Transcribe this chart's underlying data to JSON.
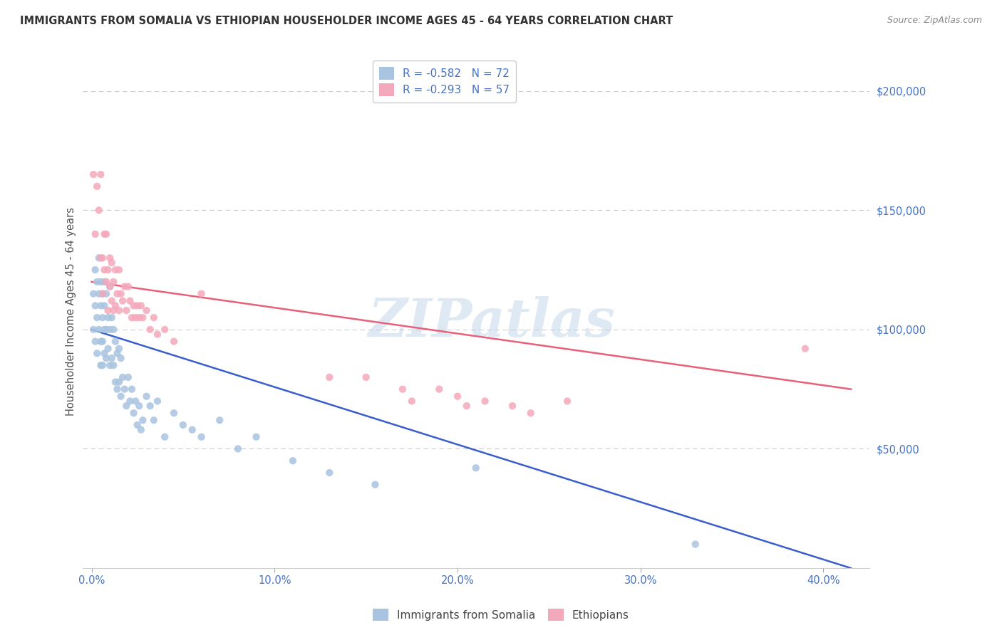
{
  "title": "IMMIGRANTS FROM SOMALIA VS ETHIOPIAN HOUSEHOLDER INCOME AGES 45 - 64 YEARS CORRELATION CHART",
  "source": "Source: ZipAtlas.com",
  "ylabel": "Householder Income Ages 45 - 64 years",
  "ylabel_ticks_labels": [
    "$50,000",
    "$100,000",
    "$150,000",
    "$200,000"
  ],
  "ylabel_ticks_vals": [
    50000,
    100000,
    150000,
    200000
  ],
  "xlabel_ticks_labels": [
    "0.0%",
    "10.0%",
    "20.0%",
    "30.0%",
    "40.0%"
  ],
  "xlabel_ticks_vals": [
    0.0,
    0.1,
    0.2,
    0.3,
    0.4
  ],
  "xlim": [
    -0.005,
    0.425
  ],
  "ylim": [
    0,
    215000
  ],
  "somalia_color": "#a8c4e0",
  "ethiopia_color": "#f4a8bb",
  "somalia_line_color": "#3a5fcd",
  "ethiopia_line_color": "#e8607a",
  "somalia_line_x0": 0.0,
  "somalia_line_y0": 100000,
  "somalia_line_x1": 0.415,
  "somalia_line_y1": 0,
  "ethiopia_line_x0": 0.0,
  "ethiopia_line_y0": 120000,
  "ethiopia_line_x1": 0.415,
  "ethiopia_line_y1": 75000,
  "legend_text_1": "R = -0.582   N = 72",
  "legend_text_2": "R = -0.293   N = 57",
  "legend_label_somalia": "Immigrants from Somalia",
  "legend_label_ethiopia": "Ethiopians",
  "watermark": "ZIPatlas",
  "background_color": "#ffffff",
  "grid_color": "#cccccc",
  "title_color": "#333333",
  "tick_color": "#4472c4",
  "ylabel_color": "#555555",
  "somalia_x": [
    0.001,
    0.001,
    0.002,
    0.002,
    0.002,
    0.003,
    0.003,
    0.003,
    0.004,
    0.004,
    0.004,
    0.005,
    0.005,
    0.005,
    0.005,
    0.006,
    0.006,
    0.006,
    0.006,
    0.007,
    0.007,
    0.007,
    0.007,
    0.008,
    0.008,
    0.008,
    0.009,
    0.009,
    0.01,
    0.01,
    0.01,
    0.011,
    0.011,
    0.012,
    0.012,
    0.013,
    0.013,
    0.014,
    0.014,
    0.015,
    0.015,
    0.016,
    0.016,
    0.017,
    0.018,
    0.019,
    0.02,
    0.021,
    0.022,
    0.023,
    0.024,
    0.025,
    0.026,
    0.027,
    0.028,
    0.03,
    0.032,
    0.034,
    0.036,
    0.04,
    0.045,
    0.05,
    0.055,
    0.06,
    0.07,
    0.08,
    0.09,
    0.11,
    0.13,
    0.155,
    0.21,
    0.33
  ],
  "somalia_y": [
    115000,
    100000,
    125000,
    110000,
    95000,
    120000,
    105000,
    90000,
    130000,
    115000,
    100000,
    120000,
    110000,
    95000,
    85000,
    115000,
    105000,
    95000,
    85000,
    120000,
    110000,
    100000,
    90000,
    115000,
    100000,
    88000,
    105000,
    92000,
    118000,
    100000,
    85000,
    105000,
    88000,
    100000,
    85000,
    95000,
    78000,
    90000,
    75000,
    92000,
    78000,
    88000,
    72000,
    80000,
    75000,
    68000,
    80000,
    70000,
    75000,
    65000,
    70000,
    60000,
    68000,
    58000,
    62000,
    72000,
    68000,
    62000,
    70000,
    55000,
    65000,
    60000,
    58000,
    55000,
    62000,
    50000,
    55000,
    45000,
    40000,
    35000,
    42000,
    10000
  ],
  "ethiopia_x": [
    0.001,
    0.002,
    0.003,
    0.004,
    0.005,
    0.005,
    0.006,
    0.006,
    0.007,
    0.007,
    0.008,
    0.008,
    0.009,
    0.009,
    0.01,
    0.01,
    0.011,
    0.011,
    0.012,
    0.012,
    0.013,
    0.013,
    0.014,
    0.015,
    0.015,
    0.016,
    0.017,
    0.018,
    0.019,
    0.02,
    0.021,
    0.022,
    0.023,
    0.024,
    0.025,
    0.026,
    0.027,
    0.028,
    0.03,
    0.032,
    0.034,
    0.036,
    0.04,
    0.045,
    0.06,
    0.13,
    0.15,
    0.17,
    0.175,
    0.19,
    0.2,
    0.205,
    0.215,
    0.23,
    0.24,
    0.26,
    0.39
  ],
  "ethiopia_y": [
    165000,
    140000,
    160000,
    150000,
    165000,
    130000,
    130000,
    115000,
    140000,
    125000,
    140000,
    120000,
    125000,
    108000,
    130000,
    118000,
    128000,
    112000,
    120000,
    108000,
    125000,
    110000,
    115000,
    125000,
    108000,
    115000,
    112000,
    118000,
    108000,
    118000,
    112000,
    105000,
    110000,
    105000,
    110000,
    105000,
    110000,
    105000,
    108000,
    100000,
    105000,
    98000,
    100000,
    95000,
    115000,
    80000,
    80000,
    75000,
    70000,
    75000,
    72000,
    68000,
    70000,
    68000,
    65000,
    70000,
    92000
  ]
}
